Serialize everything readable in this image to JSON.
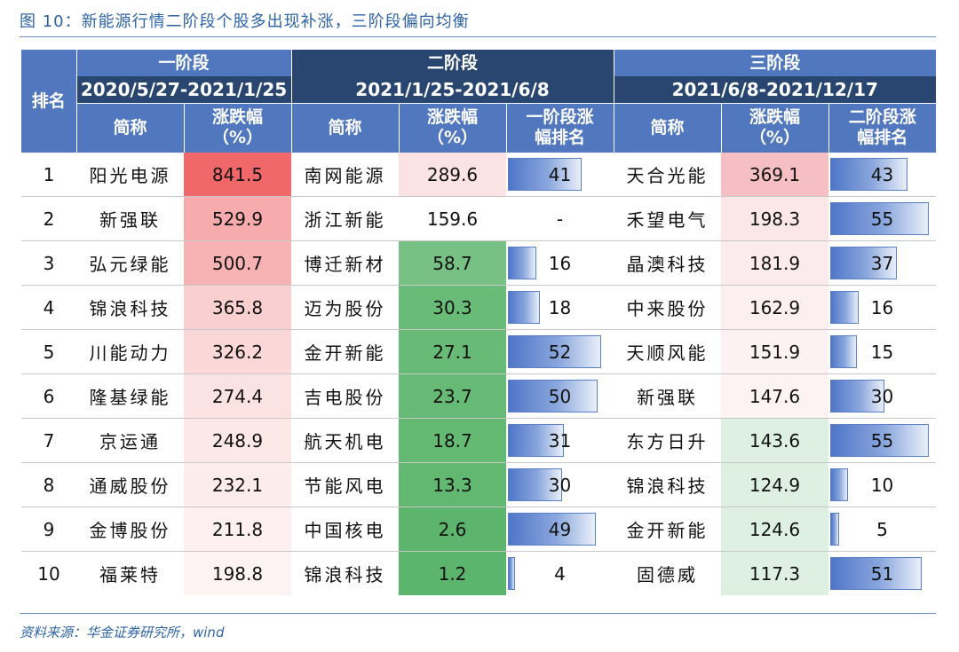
{
  "title": "图 10：新能源行情二阶段个股多出现补涨，三阶段偏向均衡",
  "source": "资料来源：华金证券研究所，wind",
  "header": {
    "rank_label": "排名",
    "stages": [
      {
        "name": "一阶段",
        "range": "2020/5/27-2021/1/25"
      },
      {
        "name": "二阶段",
        "range": "2021/1/25-2021/6/8"
      },
      {
        "name": "三阶段",
        "range": "2021/6/8-2021/12/17"
      }
    ],
    "col_name": "简称",
    "col_change_1": "涨跌幅",
    "col_change_2": "（%）",
    "col_prev_rank_s2_1": "一阶段涨",
    "col_prev_rank_s2_2": "幅排名",
    "col_prev_rank_s3_1": "二阶段涨",
    "col_prev_rank_s3_2": "幅排名"
  },
  "rows": [
    {
      "rank": "1",
      "s1_name": "阳光电源",
      "s1_chg": "841.5",
      "s2_name": "南网能源",
      "s2_chg": "289.6",
      "s2_prev": "41",
      "s3_name": "天合光能",
      "s3_chg": "369.1",
      "s3_prev": "43"
    },
    {
      "rank": "2",
      "s1_name": "新强联",
      "s1_chg": "529.9",
      "s2_name": "浙江新能",
      "s2_chg": "159.6",
      "s2_prev": "-",
      "s3_name": "禾望电气",
      "s3_chg": "198.3",
      "s3_prev": "55"
    },
    {
      "rank": "3",
      "s1_name": "弘元绿能",
      "s1_chg": "500.7",
      "s2_name": "博迁新材",
      "s2_chg": "58.7",
      "s2_prev": "16",
      "s3_name": "晶澳科技",
      "s3_chg": "181.9",
      "s3_prev": "37"
    },
    {
      "rank": "4",
      "s1_name": "锦浪科技",
      "s1_chg": "365.8",
      "s2_name": "迈为股份",
      "s2_chg": "30.3",
      "s2_prev": "18",
      "s3_name": "中来股份",
      "s3_chg": "162.9",
      "s3_prev": "16"
    },
    {
      "rank": "5",
      "s1_name": "川能动力",
      "s1_chg": "326.2",
      "s2_name": "金开新能",
      "s2_chg": "27.1",
      "s2_prev": "52",
      "s3_name": "天顺风能",
      "s3_chg": "151.9",
      "s3_prev": "15"
    },
    {
      "rank": "6",
      "s1_name": "隆基绿能",
      "s1_chg": "274.4",
      "s2_name": "吉电股份",
      "s2_chg": "23.7",
      "s2_prev": "50",
      "s3_name": "新强联",
      "s3_chg": "147.6",
      "s3_prev": "30"
    },
    {
      "rank": "7",
      "s1_name": "京运通",
      "s1_chg": "248.9",
      "s2_name": "航天机电",
      "s2_chg": "18.7",
      "s2_prev": "31",
      "s3_name": "东方日升",
      "s3_chg": "143.6",
      "s3_prev": "55"
    },
    {
      "rank": "8",
      "s1_name": "通威股份",
      "s1_chg": "232.1",
      "s2_name": "节能风电",
      "s2_chg": "13.3",
      "s2_prev": "30",
      "s3_name": "锦浪科技",
      "s3_chg": "124.9",
      "s3_prev": "10"
    },
    {
      "rank": "9",
      "s1_name": "金博股份",
      "s1_chg": "211.8",
      "s2_name": "中国核电",
      "s2_chg": "2.6",
      "s2_prev": "49",
      "s3_name": "金开新能",
      "s3_chg": "124.6",
      "s3_prev": "5"
    },
    {
      "rank": "10",
      "s1_name": "福莱特",
      "s1_chg": "198.8",
      "s2_name": "锦浪科技",
      "s2_chg": "1.2",
      "s2_prev": "4",
      "s3_name": "固德威",
      "s3_chg": "117.3",
      "s3_prev": "51"
    }
  ],
  "colors": {
    "header_blue": "#5177bf",
    "header_dark": "#294671",
    "title_blue": "#2e63a8",
    "s1_heat": "#f0686a",
    "s2_heat": "#5cb56c",
    "s3_heat": "#f4b9bd",
    "bar_blue": "#4f76c8"
  }
}
